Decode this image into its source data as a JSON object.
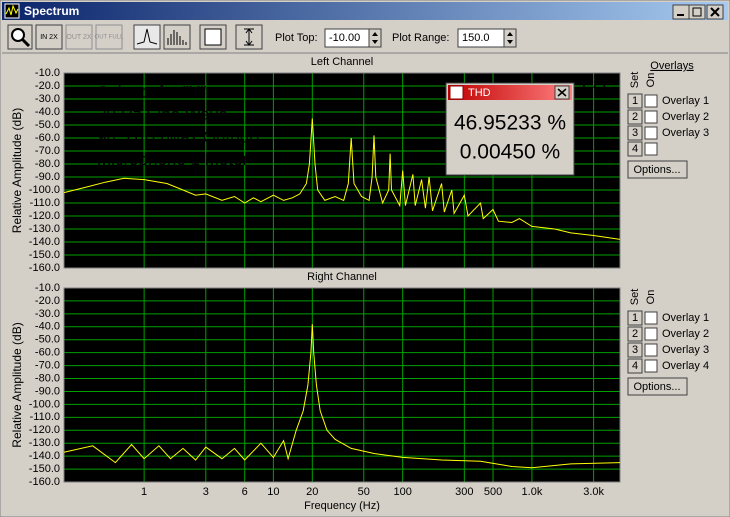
{
  "window": {
    "title": "Spectrum"
  },
  "toolbar": {
    "zoom_in": "IN 2X",
    "zoom_out": "OUT 2X",
    "zoom_full": "OUT FULL",
    "plot_top_label": "Plot Top:",
    "plot_top_value": "-10.00",
    "plot_range_label": "Plot Range:",
    "plot_range_value": "150.0"
  },
  "thd": {
    "title": "THD",
    "values": [
      "46.95233 %",
      "0.00450 %"
    ]
  },
  "overlays": [
    {
      "header": "Overlays",
      "set_label": "Set",
      "on_label": "On",
      "options": "Options...",
      "items": [
        {
          "num": 1,
          "name": "Overlay 1",
          "color": "#ff0000"
        },
        {
          "num": 2,
          "name": "Overlay 2",
          "color": "#ffff00"
        },
        {
          "num": 3,
          "name": "Overlay 3",
          "color": "#0000ff"
        },
        {
          "num": 4
        }
      ]
    },
    {
      "set_label": "Set",
      "on_label": "On",
      "options": "Options...",
      "items": [
        {
          "num": 1,
          "name": "Overlay 1",
          "color": "#ff0000"
        },
        {
          "num": 2,
          "name": "Overlay 2",
          "color": "#ffff00"
        },
        {
          "num": 3,
          "name": "Overlay 3",
          "color": "#0000ff"
        },
        {
          "num": 4,
          "name": "Overlay 4",
          "color": "#00ffff"
        }
      ]
    }
  ],
  "chart_data": [
    {
      "type": "line",
      "title": "Left Channel",
      "ylabel": "Relative Amplitude (dB)",
      "xscale": "log",
      "xlim": [
        0.24,
        4800
      ],
      "ylim": [
        -160,
        -10
      ],
      "grid": true,
      "background": "#000000",
      "grid_color": "#00a000",
      "yticks": [
        {
          "value": -10,
          "label": "-10.0"
        },
        {
          "value": -20,
          "label": "-20.0"
        },
        {
          "value": -30,
          "label": "-30.0"
        },
        {
          "value": -40,
          "label": "-40.0"
        },
        {
          "value": -50,
          "label": "-50.0"
        },
        {
          "value": -60,
          "label": "-60.0"
        },
        {
          "value": -70,
          "label": "-70.0"
        },
        {
          "value": -80,
          "label": "-80.0"
        },
        {
          "value": -90,
          "label": "-90.0"
        },
        {
          "value": -100,
          "label": "-100.0"
        },
        {
          "value": -110,
          "label": "-110.0"
        },
        {
          "value": -120,
          "label": "-120.0"
        },
        {
          "value": -130,
          "label": "-130.0"
        },
        {
          "value": -140,
          "label": "-140.0"
        },
        {
          "value": -150,
          "label": "-150.0"
        },
        {
          "value": -160,
          "label": "-160.0"
        }
      ],
      "annotations": [
        "Subwoofer \"X\"",
        "20 Hz Sine Wave",
        "98.5 dB (Max Output)",
        "Microphone 1 Meter"
      ],
      "annotation_color": "#e020e0",
      "series": [
        {
          "color": "#ffff00",
          "x": [
            0.24,
            0.35,
            0.5,
            0.7,
            1,
            1.5,
            2,
            2.5,
            3,
            4,
            5,
            6,
            7,
            8,
            10,
            12,
            14,
            16,
            18,
            19,
            20,
            21,
            22,
            25,
            30,
            35,
            38,
            40,
            42,
            48,
            55,
            58,
            60,
            62,
            70,
            78,
            80,
            82,
            95,
            100,
            105,
            120,
            125,
            140,
            150,
            160,
            170,
            200,
            210,
            240,
            250,
            300,
            320,
            400,
            420,
            500,
            550,
            700,
            800,
            1000,
            1500,
            2000,
            3000,
            4800
          ],
          "values": [
            -102,
            -98,
            -94,
            -91,
            -92,
            -95,
            -100,
            -104,
            -103,
            -108,
            -105,
            -110,
            -106,
            -109,
            -104,
            -108,
            -106,
            -103,
            -95,
            -80,
            -45,
            -80,
            -100,
            -108,
            -105,
            -108,
            -95,
            -60,
            -95,
            -105,
            -108,
            -90,
            -58,
            -90,
            -110,
            -100,
            -72,
            -100,
            -112,
            -85,
            -112,
            -88,
            -112,
            -92,
            -114,
            -90,
            -116,
            -95,
            -117,
            -100,
            -118,
            -104,
            -120,
            -110,
            -122,
            -115,
            -124,
            -125,
            -122,
            -128,
            -130,
            -133,
            -135,
            -138
          ]
        }
      ]
    },
    {
      "type": "line",
      "title": "Right Channel",
      "ylabel": "Relative Amplitude (dB)",
      "xlabel": "Frequency (Hz)",
      "xscale": "log",
      "xlim": [
        0.24,
        4800
      ],
      "ylim": [
        -160,
        -10
      ],
      "grid": true,
      "background": "#000000",
      "grid_color": "#00a000",
      "xticks": [
        1,
        3,
        6,
        10,
        20,
        50,
        100,
        300,
        500,
        {
          "value": 1000,
          "label": "1.0k"
        },
        {
          "value": 3000,
          "label": "3.0k"
        }
      ],
      "yticks": [
        {
          "value": -10,
          "label": "-10.0"
        },
        {
          "value": -20,
          "label": "-20.0"
        },
        {
          "value": -30,
          "label": "-30.0"
        },
        {
          "value": -40,
          "label": "-40.0"
        },
        {
          "value": -50,
          "label": "-50.0"
        },
        {
          "value": -60,
          "label": "-60.0"
        },
        {
          "value": -70,
          "label": "-70.0"
        },
        {
          "value": -80,
          "label": "-80.0"
        },
        {
          "value": -90,
          "label": "-90.0"
        },
        {
          "value": -100,
          "label": "-100.0"
        },
        {
          "value": -110,
          "label": "-110.0"
        },
        {
          "value": -120,
          "label": "-120.0"
        },
        {
          "value": -130,
          "label": "-130.0"
        },
        {
          "value": -140,
          "label": "-140.0"
        },
        {
          "value": -150,
          "label": "-150.0"
        },
        {
          "value": -160,
          "label": "-160.0"
        }
      ],
      "series": [
        {
          "color": "#ffff00",
          "x": [
            0.24,
            0.4,
            0.6,
            0.8,
            1,
            1.3,
            1.6,
            2,
            2.5,
            3,
            4,
            5,
            6,
            8,
            10,
            12,
            13,
            15,
            17,
            18.5,
            19.5,
            20,
            20.5,
            21.5,
            23,
            26,
            30,
            40,
            60,
            100,
            200,
            400,
            700,
            1000,
            2000,
            4800
          ],
          "values": [
            -137,
            -132,
            -145,
            -131,
            -142,
            -132,
            -142,
            -134,
            -143,
            -133,
            -142,
            -134,
            -143,
            -130,
            -141,
            -128,
            -142,
            -120,
            -105,
            -85,
            -60,
            -38,
            -60,
            -85,
            -105,
            -120,
            -127,
            -134,
            -138,
            -141,
            -143,
            -144,
            -148,
            -149,
            -146,
            -145
          ]
        }
      ]
    }
  ]
}
